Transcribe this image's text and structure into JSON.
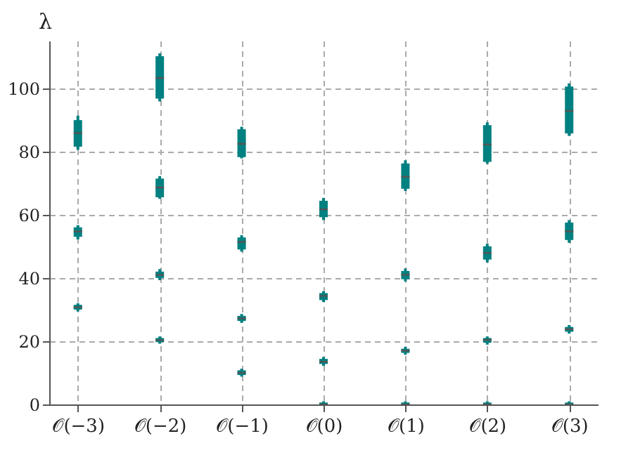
{
  "chart_data": {
    "type": "box",
    "ylabel": "λ",
    "ylim": [
      0,
      115
    ],
    "yticks": [
      0,
      20,
      40,
      60,
      80,
      100
    ],
    "grid": true,
    "categories": [
      "𝒪(−3)",
      "𝒪(−2)",
      "𝒪(−1)",
      "𝒪(0)",
      "𝒪(1)",
      "𝒪(2)",
      "𝒪(3)"
    ],
    "series": [
      {
        "color": "#008080",
        "boxes": [
          null,
          {
            "low": 19.2,
            "q1": 19.7,
            "median": 20.3,
            "q3": 21,
            "high": 21.5
          },
          {
            "low": 8.8,
            "q1": 9.3,
            "median": 10,
            "q3": 10.8,
            "high": 11.3
          },
          {
            "low": 0,
            "q1": 0,
            "median": 0,
            "q3": 0.6,
            "high": 1
          },
          {
            "low": 0,
            "q1": 0,
            "median": 0,
            "q3": 0.6,
            "high": 1
          },
          {
            "low": 0,
            "q1": 0,
            "median": 0,
            "q3": 0.6,
            "high": 1
          },
          {
            "low": 0,
            "q1": 0,
            "median": 0,
            "q3": 0.6,
            "high": 1
          }
        ]
      },
      {
        "color": "#008080",
        "boxes": [
          {
            "low": 29.4,
            "q1": 30,
            "median": 30.7,
            "q3": 31.5,
            "high": 32
          },
          {
            "low": 39.3,
            "q1": 40,
            "median": 41,
            "q3": 42,
            "high": 42.8
          },
          {
            "low": 25.8,
            "q1": 26.4,
            "median": 27.2,
            "q3": 28,
            "high": 28.6
          },
          {
            "low": 12.2,
            "q1": 12.8,
            "median": 13.5,
            "q3": 14.4,
            "high": 15
          },
          {
            "low": 15.7,
            "q1": 16.3,
            "median": 17,
            "q3": 17.6,
            "high": 18.2
          },
          {
            "low": 18.9,
            "q1": 19.5,
            "median": 20.4,
            "q3": 21,
            "high": 21.5
          },
          {
            "low": 22.4,
            "q1": 23,
            "median": 23.8,
            "q3": 24.5,
            "high": 25.1
          }
        ]
      },
      {
        "color": "#008080",
        "boxes": [
          {
            "low": 52.2,
            "q1": 53,
            "median": 54.7,
            "q3": 56,
            "high": 56.7
          },
          {
            "low": 65,
            "q1": 65.5,
            "median": 68.6,
            "q3": 71.4,
            "high": 72.2
          },
          {
            "low": 48.3,
            "q1": 49,
            "median": 51.4,
            "q3": 52.8,
            "high": 53.5
          },
          {
            "low": 32.4,
            "q1": 33,
            "median": 34.3,
            "q3": 35.2,
            "high": 35.8
          },
          {
            "low": 38.9,
            "q1": 39.6,
            "median": 41,
            "q3": 42.2,
            "high": 43
          },
          {
            "low": 44.9,
            "q1": 45.8,
            "median": 47.9,
            "q3": 50,
            "high": 50.8
          },
          {
            "low": 51.1,
            "q1": 52,
            "median": 54.7,
            "q3": 57.5,
            "high": 58.3
          }
        ]
      },
      {
        "color": "#008080",
        "boxes": [
          {
            "low": 80.5,
            "q1": 81.5,
            "median": 85.8,
            "q3": 89.9,
            "high": 91.3
          },
          {
            "low": 95.8,
            "q1": 96.7,
            "median": 103.2,
            "q3": 110.1,
            "high": 111
          },
          {
            "low": 77.8,
            "q1": 78.2,
            "median": 82.4,
            "q3": 87,
            "high": 87.8
          },
          {
            "low": 58.3,
            "q1": 59.2,
            "median": 61.7,
            "q3": 64.4,
            "high": 65.3
          },
          {
            "low": 67.5,
            "q1": 68.2,
            "median": 72,
            "q3": 76.2,
            "high": 77.2
          },
          {
            "low": 76.1,
            "q1": 76.7,
            "median": 82.2,
            "q3": 88.3,
            "high": 89.2
          },
          {
            "low": 84.9,
            "q1": 85.7,
            "median": 92.8,
            "q3": 100.5,
            "high": 101.5
          }
        ]
      }
    ]
  }
}
